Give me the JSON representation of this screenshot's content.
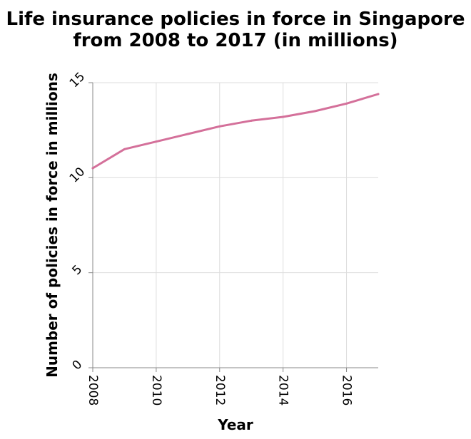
{
  "chart_data": {
    "type": "line",
    "title_lines": [
      "Life insurance policies in force in Singapore",
      "from 2008 to 2017 (in millions)"
    ],
    "xlabel": "Year",
    "ylabel": "Number of policies in force in millions",
    "x": [
      2008,
      2009,
      2010,
      2011,
      2012,
      2013,
      2014,
      2015,
      2016,
      2017
    ],
    "series": [
      {
        "values": [
          10.5,
          11.5,
          11.9,
          12.3,
          12.7,
          13.0,
          13.2,
          13.5,
          13.9,
          14.4
        ]
      }
    ],
    "xlim": [
      2008,
      2017
    ],
    "ylim": [
      0,
      15
    ],
    "xticks": [
      2008,
      2010,
      2012,
      2014,
      2016
    ],
    "yticks": [
      0,
      5,
      10,
      15
    ],
    "grid": true,
    "line_color": "#d4709a"
  }
}
